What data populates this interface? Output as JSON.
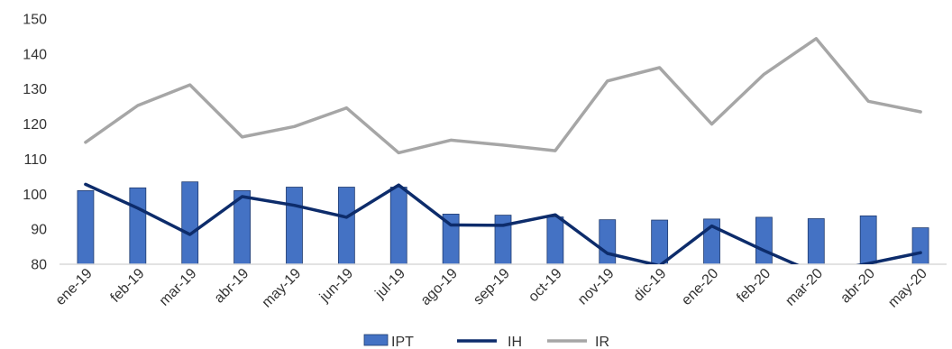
{
  "chart_data": {
    "type": "bar",
    "categories": [
      "ene-19",
      "feb-19",
      "mar-19",
      "abr-19",
      "may-19",
      "jun-19",
      "jul-19",
      "ago-19",
      "sep-19",
      "oct-19",
      "nov-19",
      "dic-19",
      "ene-20",
      "feb-20",
      "mar-20",
      "abr-20",
      "may-20"
    ],
    "series": [
      {
        "name": "IPT",
        "type": "bar",
        "color": "#4472C4",
        "values": [
          101,
          101.8,
          103.5,
          101,
          102,
          102,
          102,
          94.3,
          94,
          93.5,
          92.7,
          92.6,
          92.9,
          93.4,
          93,
          93.8,
          90.4
        ]
      },
      {
        "name": "IH",
        "type": "line",
        "color": "#0D2C6B",
        "values": [
          102.8,
          96,
          88.5,
          99.3,
          96.8,
          93.4,
          102.6,
          91.2,
          91.1,
          94.1,
          83.1,
          79.6,
          90.9,
          83.9,
          77.4,
          80.2,
          83.3
        ]
      },
      {
        "name": "IR",
        "type": "line",
        "color": "#A6A6A6",
        "values": [
          114.8,
          125.3,
          131.2,
          116.3,
          119.3,
          124.6,
          111.8,
          115.4,
          114,
          112.4,
          132.3,
          136.1,
          120,
          134.2,
          144.4,
          126.5,
          123.5
        ]
      }
    ],
    "yticks": [
      "80",
      "90",
      "100",
      "110",
      "120",
      "130",
      "140",
      "150"
    ],
    "ylim": [
      80,
      150
    ],
    "grid": false,
    "legend": "bottom"
  }
}
